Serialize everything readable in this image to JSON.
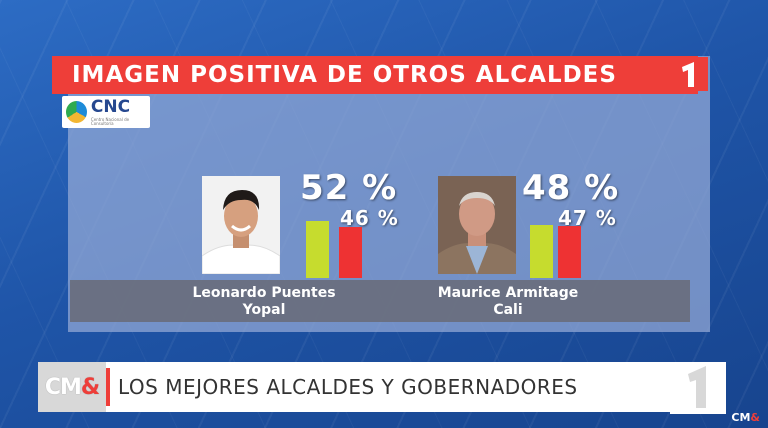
{
  "graphic": {
    "title": "IMAGEN POSITIVA DE OTROS ALCALDES",
    "source_logo": {
      "main": "CNC",
      "sub": "Centro Nacional de Consultoría"
    }
  },
  "candidates": [
    {
      "name": "Leonardo Puentes",
      "city": "Yopal",
      "pct_main": "52 %",
      "pct_secondary": "46 %",
      "value_main": 52,
      "value_secondary": 46
    },
    {
      "name": "Maurice Armitage",
      "city": "Cali",
      "pct_main": "48 %",
      "pct_secondary": "47 %",
      "value_main": 48,
      "value_secondary": 47
    }
  ],
  "colors": {
    "title_red": "#ee3e39",
    "bar_green": "#c6dc2e",
    "bar_red": "#ee3233"
  },
  "lower_third": {
    "logo_text": "CM",
    "logo_amp": "&",
    "headline": "LOS MEJORES ALCALDES Y GOBERNADORES"
  },
  "corner_bug": {
    "text": "CM",
    "amp": "&"
  }
}
